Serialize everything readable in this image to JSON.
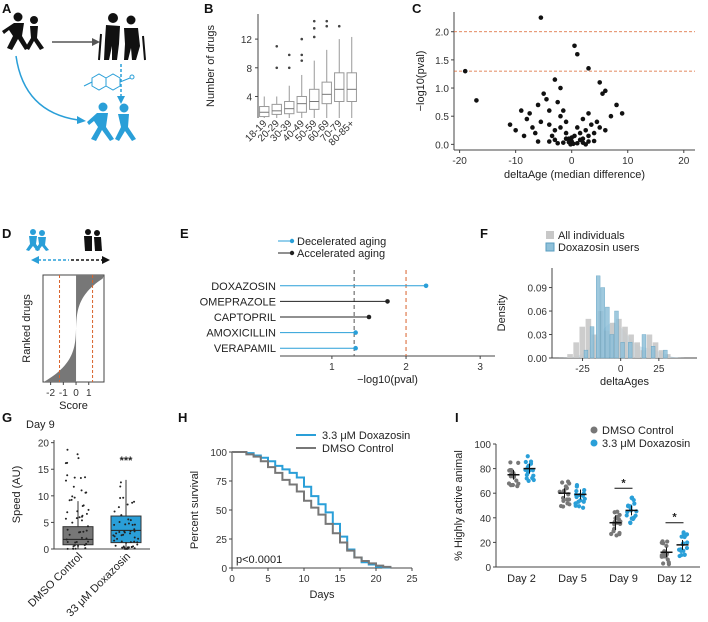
{
  "colors": {
    "blue": "#2a9fd8",
    "grey": "#777777",
    "dark": "#222222",
    "red": "#d9622b",
    "lightblue": "#8fc0d9",
    "lightgrey": "#c8c8c8"
  },
  "panels": [
    "A",
    "B",
    "C",
    "D",
    "E",
    "F",
    "G",
    "H",
    "I"
  ],
  "icons": {
    "young": "running-people-icon",
    "old": "elderly-people-icon",
    "drug": "molecule-icon",
    "rejuvenated": "running-people-icon"
  },
  "chart_data": [
    {
      "id": "B",
      "type": "box",
      "ylabel": "Number of drugs",
      "yticks": [
        4,
        8,
        12
      ],
      "ylim": [
        1,
        15.5
      ],
      "categories": [
        "18-19",
        "20-29",
        "30-39",
        "40-49",
        "50-59",
        "60-69",
        "70-79",
        "80-85+"
      ],
      "boxes": [
        [
          1,
          1.2,
          1.8,
          2.6,
          4
        ],
        [
          1,
          1.5,
          2,
          2.9,
          4
        ],
        [
          1,
          1.6,
          2.3,
          3.3,
          5.5
        ],
        [
          1,
          1.8,
          3,
          4,
          7
        ],
        [
          1,
          2.2,
          3.3,
          5,
          9
        ],
        [
          1,
          3,
          4.3,
          6,
          10.5
        ],
        [
          1,
          3.3,
          5,
          7.3,
          12
        ],
        [
          1,
          3.3,
          5,
          7.3,
          12.3
        ]
      ],
      "outliers": [
        [],
        [
          11,
          8
        ],
        [
          9.8,
          8
        ],
        [
          12,
          9.8,
          9
        ],
        [
          14.5,
          13.5,
          12.3
        ],
        [
          14.5,
          13.8
        ],
        [
          13.8
        ],
        []
      ]
    },
    {
      "id": "C",
      "type": "scatter",
      "xlabel": "deltaAge (median difference)",
      "ylabel": "−log10(pval)",
      "xlim": [
        -21,
        22
      ],
      "ylim": [
        -0.1,
        2.35
      ],
      "xticks": [
        -20,
        -10,
        0,
        10,
        20
      ],
      "yticks": [
        0.0,
        0.5,
        1.0,
        1.5,
        2.0
      ],
      "hlines": [
        2.0,
        1.3
      ],
      "points": [
        [
          -19,
          1.3
        ],
        [
          -17,
          0.78
        ],
        [
          -5.5,
          2.25
        ],
        [
          -9,
          0.6
        ],
        [
          -8,
          0.45
        ],
        [
          -7.5,
          0.55
        ],
        [
          -6,
          0.7
        ],
        [
          -5,
          0.9
        ],
        [
          -4.5,
          0.8
        ],
        [
          -3,
          1.15
        ],
        [
          -2.5,
          0.75
        ],
        [
          -2,
          1.0
        ],
        [
          -1.5,
          0.6
        ],
        [
          0.5,
          1.75
        ],
        [
          1,
          1.6
        ],
        [
          3,
          1.35
        ],
        [
          5,
          1.1
        ],
        [
          5.5,
          0.9
        ],
        [
          6,
          0.95
        ],
        [
          7,
          0.5
        ],
        [
          8,
          0.7
        ],
        [
          9,
          0.55
        ],
        [
          -11,
          0.35
        ],
        [
          -10,
          0.25
        ],
        [
          -8.5,
          0.15
        ],
        [
          -7,
          0.3
        ],
        [
          -6.5,
          0.2
        ],
        [
          -5.5,
          0.4
        ],
        [
          -4,
          0.35
        ],
        [
          -3.5,
          0.15
        ],
        [
          -3,
          0.25
        ],
        [
          -2,
          0.3
        ],
        [
          -1,
          0.2
        ],
        [
          -0.5,
          0.1
        ],
        [
          0,
          0.05
        ],
        [
          0.5,
          0.15
        ],
        [
          1,
          0.3
        ],
        [
          1.5,
          0.2
        ],
        [
          2,
          0.1
        ],
        [
          2.5,
          0.25
        ],
        [
          3,
          0.15
        ],
        [
          3.5,
          0.35
        ],
        [
          4,
          0.2
        ],
        [
          4.5,
          0.4
        ],
        [
          5,
          0.3
        ],
        [
          6,
          0.25
        ],
        [
          -1,
          0.4
        ],
        [
          -2,
          0.5
        ],
        [
          -4,
          0.6
        ],
        [
          2,
          0.45
        ],
        [
          3,
          0.55
        ],
        [
          -6,
          0.05
        ],
        [
          -4,
          0.05
        ],
        [
          -2.5,
          0.02
        ],
        [
          -1.5,
          0.03
        ],
        [
          -0.5,
          0.04
        ],
        [
          1,
          0.02
        ],
        [
          2,
          0.03
        ],
        [
          3,
          0.05
        ],
        [
          4,
          0.06
        ],
        [
          -3,
          0.08
        ],
        [
          1.5,
          0.08
        ],
        [
          0,
          0.12
        ],
        [
          -1,
          0.1
        ],
        [
          2.5,
          0.0
        ],
        [
          -0.2,
          0.0
        ],
        [
          0.3,
          0.01
        ]
      ]
    },
    {
      "id": "D",
      "type": "ranked-score",
      "xlabel": "Score",
      "ylabel": "Ranked drugs",
      "xlim": [
        -2.6,
        2.2
      ],
      "xticks": [
        -2,
        -1,
        0,
        1
      ],
      "vlines": [
        -1.3,
        1.3
      ]
    },
    {
      "id": "E",
      "type": "lollipop",
      "xlabel": "−log10(pval)",
      "xlim": [
        0.3,
        3.2
      ],
      "xticks": [
        1,
        2,
        3
      ],
      "vlines": [
        {
          "x": 1.3,
          "c": "grey"
        },
        {
          "x": 2.0,
          "c": "red"
        }
      ],
      "legend": [
        "Decelerated aging",
        "Accelerated aging"
      ],
      "items": [
        {
          "label": "DOXAZOSIN",
          "v": 2.27,
          "g": "dec"
        },
        {
          "label": "OMEPRAZOLE",
          "v": 1.75,
          "g": "acc"
        },
        {
          "label": "CAPTOPRIL",
          "v": 1.5,
          "g": "acc"
        },
        {
          "label": "AMOXICILLIN",
          "v": 1.32,
          "g": "dec"
        },
        {
          "label": "VERAPAMIL",
          "v": 1.32,
          "g": "dec"
        }
      ]
    },
    {
      "id": "F",
      "type": "density-histogram",
      "xlabel": "deltaAges",
      "ylabel": "Density",
      "xlim": [
        -45,
        50
      ],
      "ylim": [
        0,
        0.115
      ],
      "xticks": [
        -25,
        0,
        25
      ],
      "yticks": [
        0.0,
        0.03,
        0.06,
        0.09
      ],
      "legend": [
        "All individuals",
        "Doxazosin users"
      ]
    },
    {
      "id": "G",
      "type": "box",
      "subtitle": "Day 9",
      "ylabel": "Speed (AU)",
      "ylim": [
        0,
        20.5
      ],
      "yticks": [
        0,
        5,
        10,
        15,
        20
      ],
      "categories": [
        "DMSO Control",
        "33 μM Doxazosin"
      ],
      "boxes": [
        [
          0,
          0.8,
          1.8,
          4.2,
          9
        ],
        [
          0,
          1.2,
          3.5,
          6.2,
          13
        ]
      ],
      "sig": "***"
    },
    {
      "id": "H",
      "type": "survival",
      "xlabel": "Days",
      "ylabel": "Percent survival",
      "xlim": [
        0,
        25
      ],
      "ylim": [
        0,
        100
      ],
      "xticks": [
        0,
        5,
        10,
        15,
        20,
        25
      ],
      "yticks": [
        0,
        25,
        50,
        75,
        100
      ],
      "annotation": "p<0.0001",
      "series": [
        {
          "name": "3.3 μM Doxazosin",
          "color": "blue",
          "steps": [
            [
              0,
              100
            ],
            [
              2,
              99
            ],
            [
              3,
              97
            ],
            [
              4,
              95
            ],
            [
              5,
              92
            ],
            [
              6,
              88
            ],
            [
              7,
              85
            ],
            [
              8,
              82
            ],
            [
              9,
              78
            ],
            [
              10,
              70
            ],
            [
              11,
              62
            ],
            [
              12,
              55
            ],
            [
              13,
              48
            ],
            [
              14,
              38
            ],
            [
              15,
              27
            ],
            [
              16,
              16
            ],
            [
              17,
              9
            ],
            [
              18,
              5
            ],
            [
              19,
              3
            ],
            [
              20,
              1
            ],
            [
              21,
              0.5
            ],
            [
              22,
              0
            ]
          ]
        },
        {
          "name": "DMSO Control",
          "color": "grey",
          "steps": [
            [
              0,
              100
            ],
            [
              2,
              98
            ],
            [
              3,
              96
            ],
            [
              4,
              92
            ],
            [
              5,
              87
            ],
            [
              6,
              82
            ],
            [
              7,
              76
            ],
            [
              8,
              72
            ],
            [
              9,
              66
            ],
            [
              10,
              58
            ],
            [
              11,
              52
            ],
            [
              12,
              46
            ],
            [
              13,
              38
            ],
            [
              14,
              30
            ],
            [
              15,
              22
            ],
            [
              16,
              15
            ],
            [
              17,
              9
            ],
            [
              18,
              6
            ],
            [
              19,
              4
            ],
            [
              20,
              2
            ],
            [
              21,
              1
            ],
            [
              22,
              0
            ]
          ]
        }
      ]
    },
    {
      "id": "I",
      "type": "dot-mean-sem",
      "ylabel": "% Highly active animal",
      "ylim": [
        0,
        100
      ],
      "yticks": [
        0,
        20,
        40,
        60,
        80,
        100
      ],
      "categories": [
        "Day 2",
        "Day 5",
        "Day 9",
        "Day 12"
      ],
      "legend": [
        "DMSO Control",
        "3.3 μM Doxazosin"
      ],
      "means": [
        [
          75,
          80
        ],
        [
          60,
          59
        ],
        [
          36,
          46
        ],
        [
          12,
          18
        ]
      ],
      "sem": [
        [
          2,
          2
        ],
        [
          2,
          2
        ],
        [
          3,
          2
        ],
        [
          2,
          2
        ]
      ],
      "sig": [
        "",
        "",
        "*",
        "*"
      ]
    }
  ]
}
